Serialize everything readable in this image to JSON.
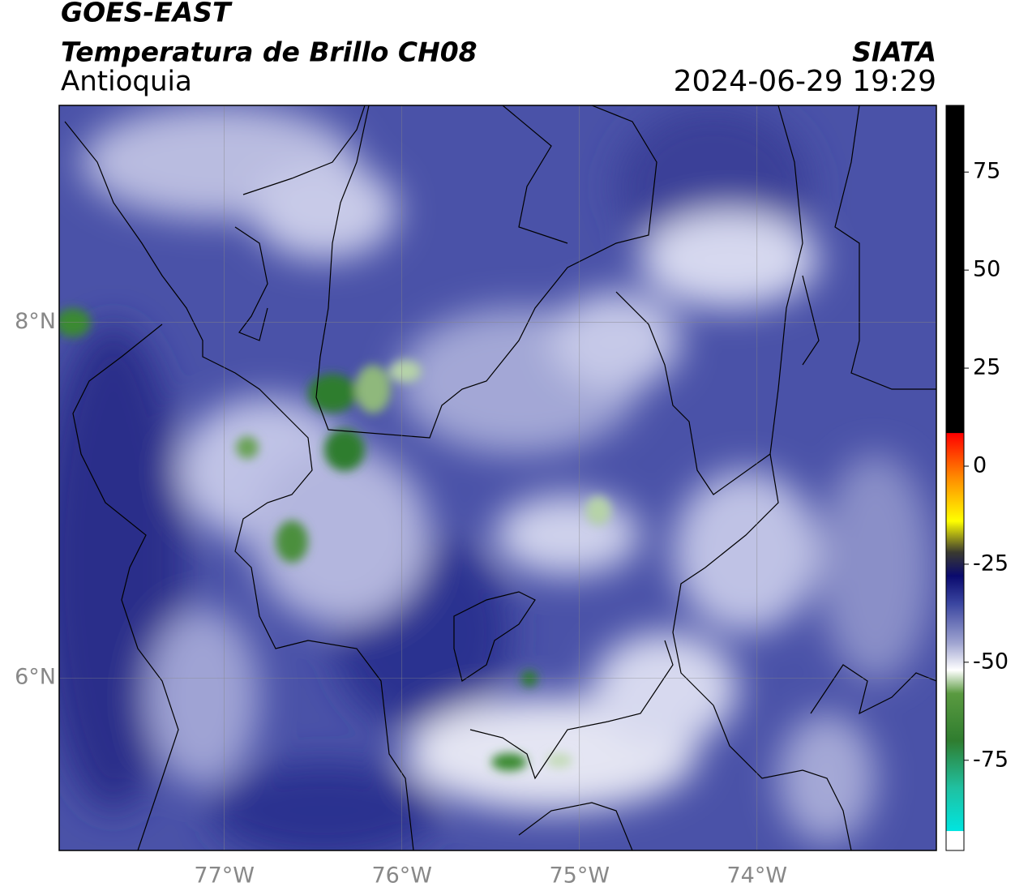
{
  "header": {
    "title": "GOES-EAST",
    "subtitle": "Temperatura de Brillo CH08",
    "region": "Antioquia",
    "source": "SIATA",
    "datetime": "2024-06-29 19:29"
  },
  "map": {
    "xlim": [
      -77.93,
      -72.99
    ],
    "ylim": [
      5.03,
      9.22
    ],
    "xticks": [
      {
        "value": -77,
        "label": "77°W"
      },
      {
        "value": -76,
        "label": "76°W"
      },
      {
        "value": -75,
        "label": "75°W"
      },
      {
        "value": -74,
        "label": "74°W"
      }
    ],
    "yticks": [
      {
        "value": 6,
        "label": "6°N"
      },
      {
        "value": 8,
        "label": "8°N"
      }
    ],
    "grid": true
  },
  "colorbar": {
    "lim": [
      -98,
      92
    ],
    "ticks": [
      75,
      50,
      25,
      0,
      -25,
      -50,
      -75
    ],
    "stops": [
      [
        92,
        "#000000"
      ],
      [
        8.5,
        "#000000"
      ],
      [
        8.4,
        "#ff0000"
      ],
      [
        -3,
        "#ff8c00"
      ],
      [
        -14,
        "#ffff00"
      ],
      [
        -22,
        "#3a3a30"
      ],
      [
        -28,
        "#0a0a6e"
      ],
      [
        -35,
        "#3a45a0"
      ],
      [
        -45,
        "#9ea3d0"
      ],
      [
        -52,
        "#ffffff"
      ],
      [
        -58,
        "#5a9a40"
      ],
      [
        -70,
        "#2f7d2f"
      ],
      [
        -82,
        "#20c0a0"
      ],
      [
        -93,
        "#00e5e0"
      ],
      [
        -93.1,
        "#ffffff"
      ],
      [
        -98,
        "#ffffff"
      ]
    ]
  }
}
